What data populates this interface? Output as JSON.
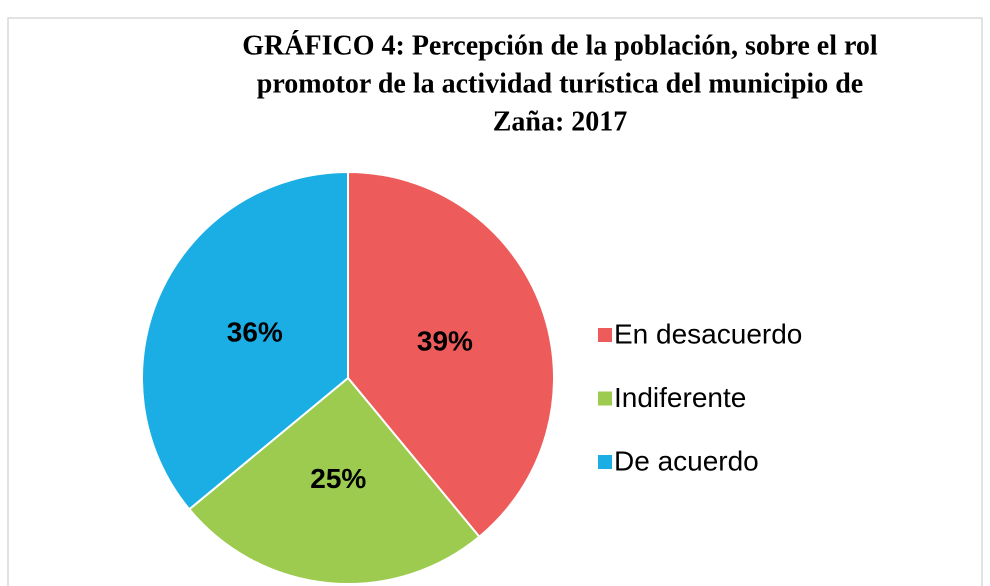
{
  "chart_data": {
    "type": "pie",
    "title": [
      "GRÁFICO  4:  Percepción de la población, sobre el rol",
      "promotor de la actividad turística del municipio de",
      "Zaña: 2017"
    ],
    "categories": [
      "En desacuerdo",
      "Indiferente",
      "De acuerdo"
    ],
    "values": [
      39,
      25,
      36
    ],
    "value_labels": [
      "39%",
      "25%",
      "36%"
    ],
    "colors": [
      "#ee5b5b",
      "#9ccb4f",
      "#1aaee5"
    ],
    "legend": "right"
  }
}
